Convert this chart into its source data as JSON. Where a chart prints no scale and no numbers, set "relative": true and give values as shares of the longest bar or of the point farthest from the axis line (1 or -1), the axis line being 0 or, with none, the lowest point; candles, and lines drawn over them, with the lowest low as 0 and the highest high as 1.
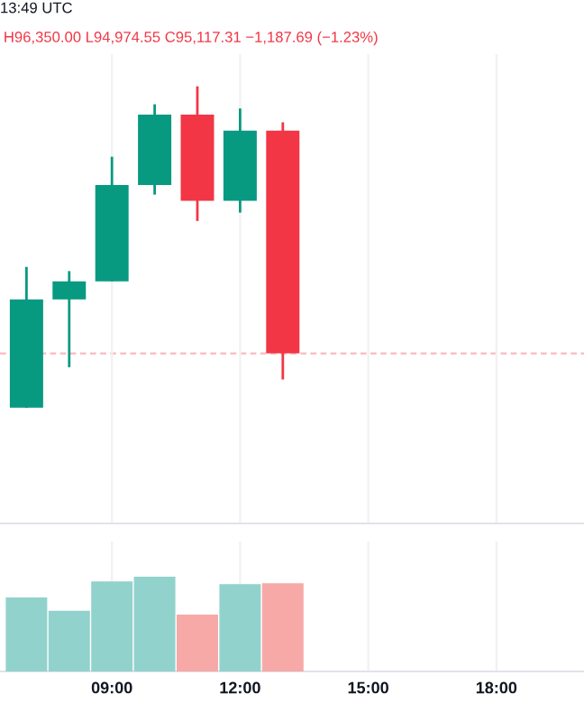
{
  "chart_data": [
    {
      "type": "candlestick",
      "annotations": [
        "13:49 UTC",
        "H96,350.00 L94,974.55 C95,117.31 −1,187.69 (−1.23%)"
      ],
      "relative": true,
      "x": [
        7,
        8,
        9,
        10,
        11,
        12,
        13
      ],
      "ohlc": [
        [
          0,
          0.438,
          0,
          0.337
        ],
        [
          0.337,
          0.425,
          0.126,
          0.393
        ],
        [
          0.393,
          0.781,
          0.393,
          0.693
        ],
        [
          0.693,
          0.944,
          0.663,
          0.912
        ],
        [
          0.912,
          1,
          0.581,
          0.644
        ],
        [
          0.644,
          0.931,
          0.607,
          0.862
        ],
        [
          0.862,
          0.888,
          0.088,
          0.169
        ]
      ],
      "colors": [
        "#089981",
        "#089981",
        "#089981",
        "#089981",
        "#f23645",
        "#089981",
        "#f23645"
      ],
      "xlim": [
        6.38,
        20.05
      ],
      "xticks": [
        {
          "value": 9,
          "label": null
        },
        {
          "value": 12,
          "label": null
        },
        {
          "value": 15,
          "label": null
        },
        {
          "value": 18,
          "label": null
        }
      ],
      "grid": "x",
      "tick_labels": false,
      "ref_lines": [
        {
          "axis": "y",
          "value": 0.169,
          "color": "#f23645",
          "line_style": "dashed"
        }
      ]
    },
    {
      "type": "bar",
      "relative": true,
      "x": [
        7,
        8,
        9,
        10,
        11,
        12,
        13
      ],
      "values": [
        0.78,
        0.64,
        0.95,
        1,
        0.6,
        0.92,
        0.93
      ],
      "colors": [
        "#92d2cc",
        "#92d2cc",
        "#92d2cc",
        "#92d2cc",
        "#f7a9a7",
        "#92d2cc",
        "#f7a9a7"
      ],
      "xlim": [
        6.38,
        20.05
      ],
      "xticks": [
        {
          "value": 9,
          "label": "09:00"
        },
        {
          "value": 12,
          "label": "12:00"
        },
        {
          "value": 15,
          "label": "15:00"
        },
        {
          "value": 18,
          "label": "18:00"
        }
      ],
      "grid": "x",
      "tick_labels": "x"
    }
  ]
}
